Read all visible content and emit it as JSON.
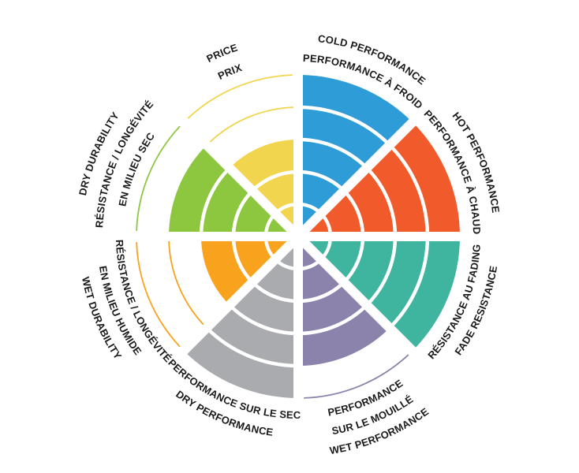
{
  "chart_data": {
    "type": "polar-bar",
    "title": "",
    "max_rings": 5,
    "legend_position": "radial-labels",
    "grid": "per-sector ring bands, white separators",
    "background_color": "#FFFFFF",
    "text_color": "#1A1A1A",
    "sectors": [
      {
        "id": "cold-performance",
        "labels": [
          "COLD PERFORMANCE",
          "PERFORMANCE À FROID"
        ],
        "value": 5,
        "color": "#2E9CD6"
      },
      {
        "id": "hot-performance",
        "labels": [
          "HOT PERFORMANCE",
          "PERFORMANCE À CHAUD"
        ],
        "value": 5,
        "color": "#F15A2B"
      },
      {
        "id": "fade-resistance",
        "labels": [
          "RÉSISTANCE AU FADING",
          "FADE RESISTANCE"
        ],
        "value": 5,
        "color": "#3FB59F"
      },
      {
        "id": "wet-performance",
        "labels": [
          "PERFORMANCE",
          "SUR LE MOUILLÉ",
          "WET PERFORMANCE"
        ],
        "value": 4,
        "color": "#8B83AC"
      },
      {
        "id": "dry-performance",
        "labels": [
          "PERFORMANCE SUR LE SEC",
          "DRY PERFORMANCE"
        ],
        "value": 5,
        "color": "#A9ABAE"
      },
      {
        "id": "wet-durability",
        "labels": [
          "RÉSISTANCE / LONGÉVITÉ",
          "EN MILIEU HUMIDE",
          "WET DURABILITY"
        ],
        "value": 3,
        "color": "#F9A21E"
      },
      {
        "id": "dry-durability",
        "labels": [
          "DRY DURABILITY",
          "RÉSISTANCE / LONGÉVITÉ",
          "EN MILIEU SEC"
        ],
        "value": 4,
        "color": "#8DC63F"
      },
      {
        "id": "price",
        "labels": [
          "PRICE",
          "PRIX"
        ],
        "value": 3,
        "color": "#F1D54F"
      }
    ]
  }
}
